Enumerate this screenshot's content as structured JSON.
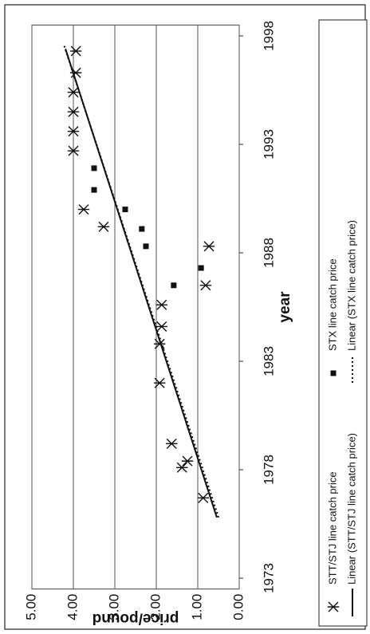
{
  "chart_data": {
    "type": "scatter",
    "x_label": "year",
    "y_label": "price/pound",
    "xlim": [
      1972.5,
      1998.5
    ],
    "xticks": [
      1973,
      1978,
      1983,
      1988,
      1993,
      1998
    ],
    "ylim": [
      0,
      5
    ],
    "yticks": [
      {
        "value": 0,
        "label": "0.00"
      },
      {
        "value": 1,
        "label": "1.00"
      },
      {
        "value": 2,
        "label": "2.00"
      },
      {
        "value": 3,
        "label": "3.00"
      },
      {
        "value": 4,
        "label": "4.00"
      },
      {
        "value": 5,
        "label": "5.00"
      }
    ],
    "grid": true,
    "rotated": true,
    "series": [
      {
        "name": "STT/STJ line catch price",
        "color": "#111111",
        "marker": "star",
        "x": [
          1976.7,
          1978.4,
          1978.1,
          1979.2,
          1982,
          1983.8,
          1984.6,
          1985.6,
          1986.5,
          1988.3,
          1989.2,
          1990,
          1992.7,
          1993.6,
          1994.5,
          1995.4,
          1996.3,
          1997.3
        ],
        "values": [
          0.87,
          1.25,
          1.38,
          1.63,
          1.92,
          1.92,
          1.87,
          1.87,
          0.81,
          0.73,
          3.27,
          3.75,
          4.0,
          4.0,
          4.0,
          4.0,
          3.94,
          3.94
        ]
      },
      {
        "name": "STX line catch price",
        "color": "#111111",
        "marker": "square",
        "x": [
          1986.5,
          1987.3,
          1988.3,
          1989.1,
          1990,
          1990.9,
          1991.9
        ],
        "values": [
          1.58,
          0.92,
          2.25,
          2.35,
          2.75,
          3.5,
          3.5
        ]
      },
      {
        "name": "Linear (STT/STJ line catch price)",
        "color": "#111111",
        "marker": "line",
        "dash": "solid",
        "x": [
          1975.8,
          1997.4
        ],
        "values": [
          0.54,
          4.19
        ]
      },
      {
        "name": "Linear (STX line catch price)",
        "color": "#111111",
        "marker": "line",
        "dash": "dotted",
        "x": [
          1975.8,
          1997.6
        ],
        "values": [
          0.5,
          4.23
        ]
      }
    ]
  }
}
